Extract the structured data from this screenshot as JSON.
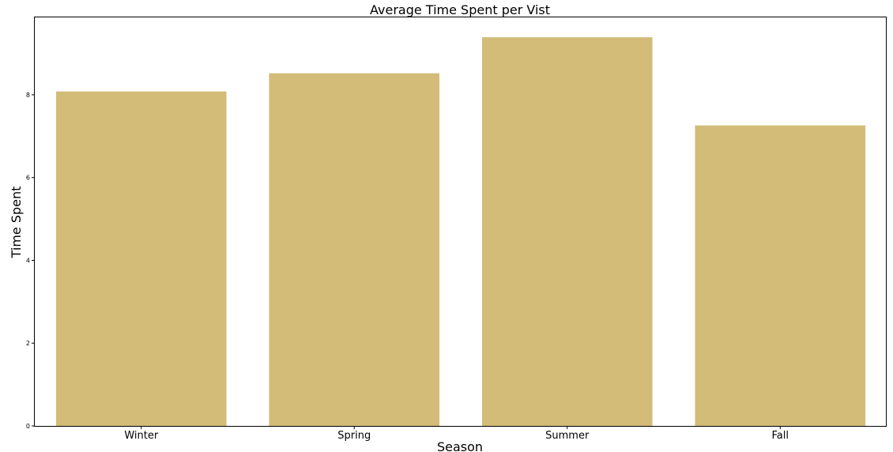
{
  "chart_data": {
    "type": "bar",
    "title": "Average Time Spent per Vist",
    "xlabel": "Season",
    "ylabel": "Time Spent",
    "categories": [
      "Winter",
      "Spring",
      "Summer",
      "Fall"
    ],
    "values": [
      8.08,
      8.52,
      9.39,
      7.26
    ],
    "ylim": [
      0,
      9.87
    ],
    "yticks": [
      0,
      2,
      4,
      6,
      8
    ],
    "bar_color": "#d3bb78",
    "grid": false,
    "legend": "none"
  }
}
